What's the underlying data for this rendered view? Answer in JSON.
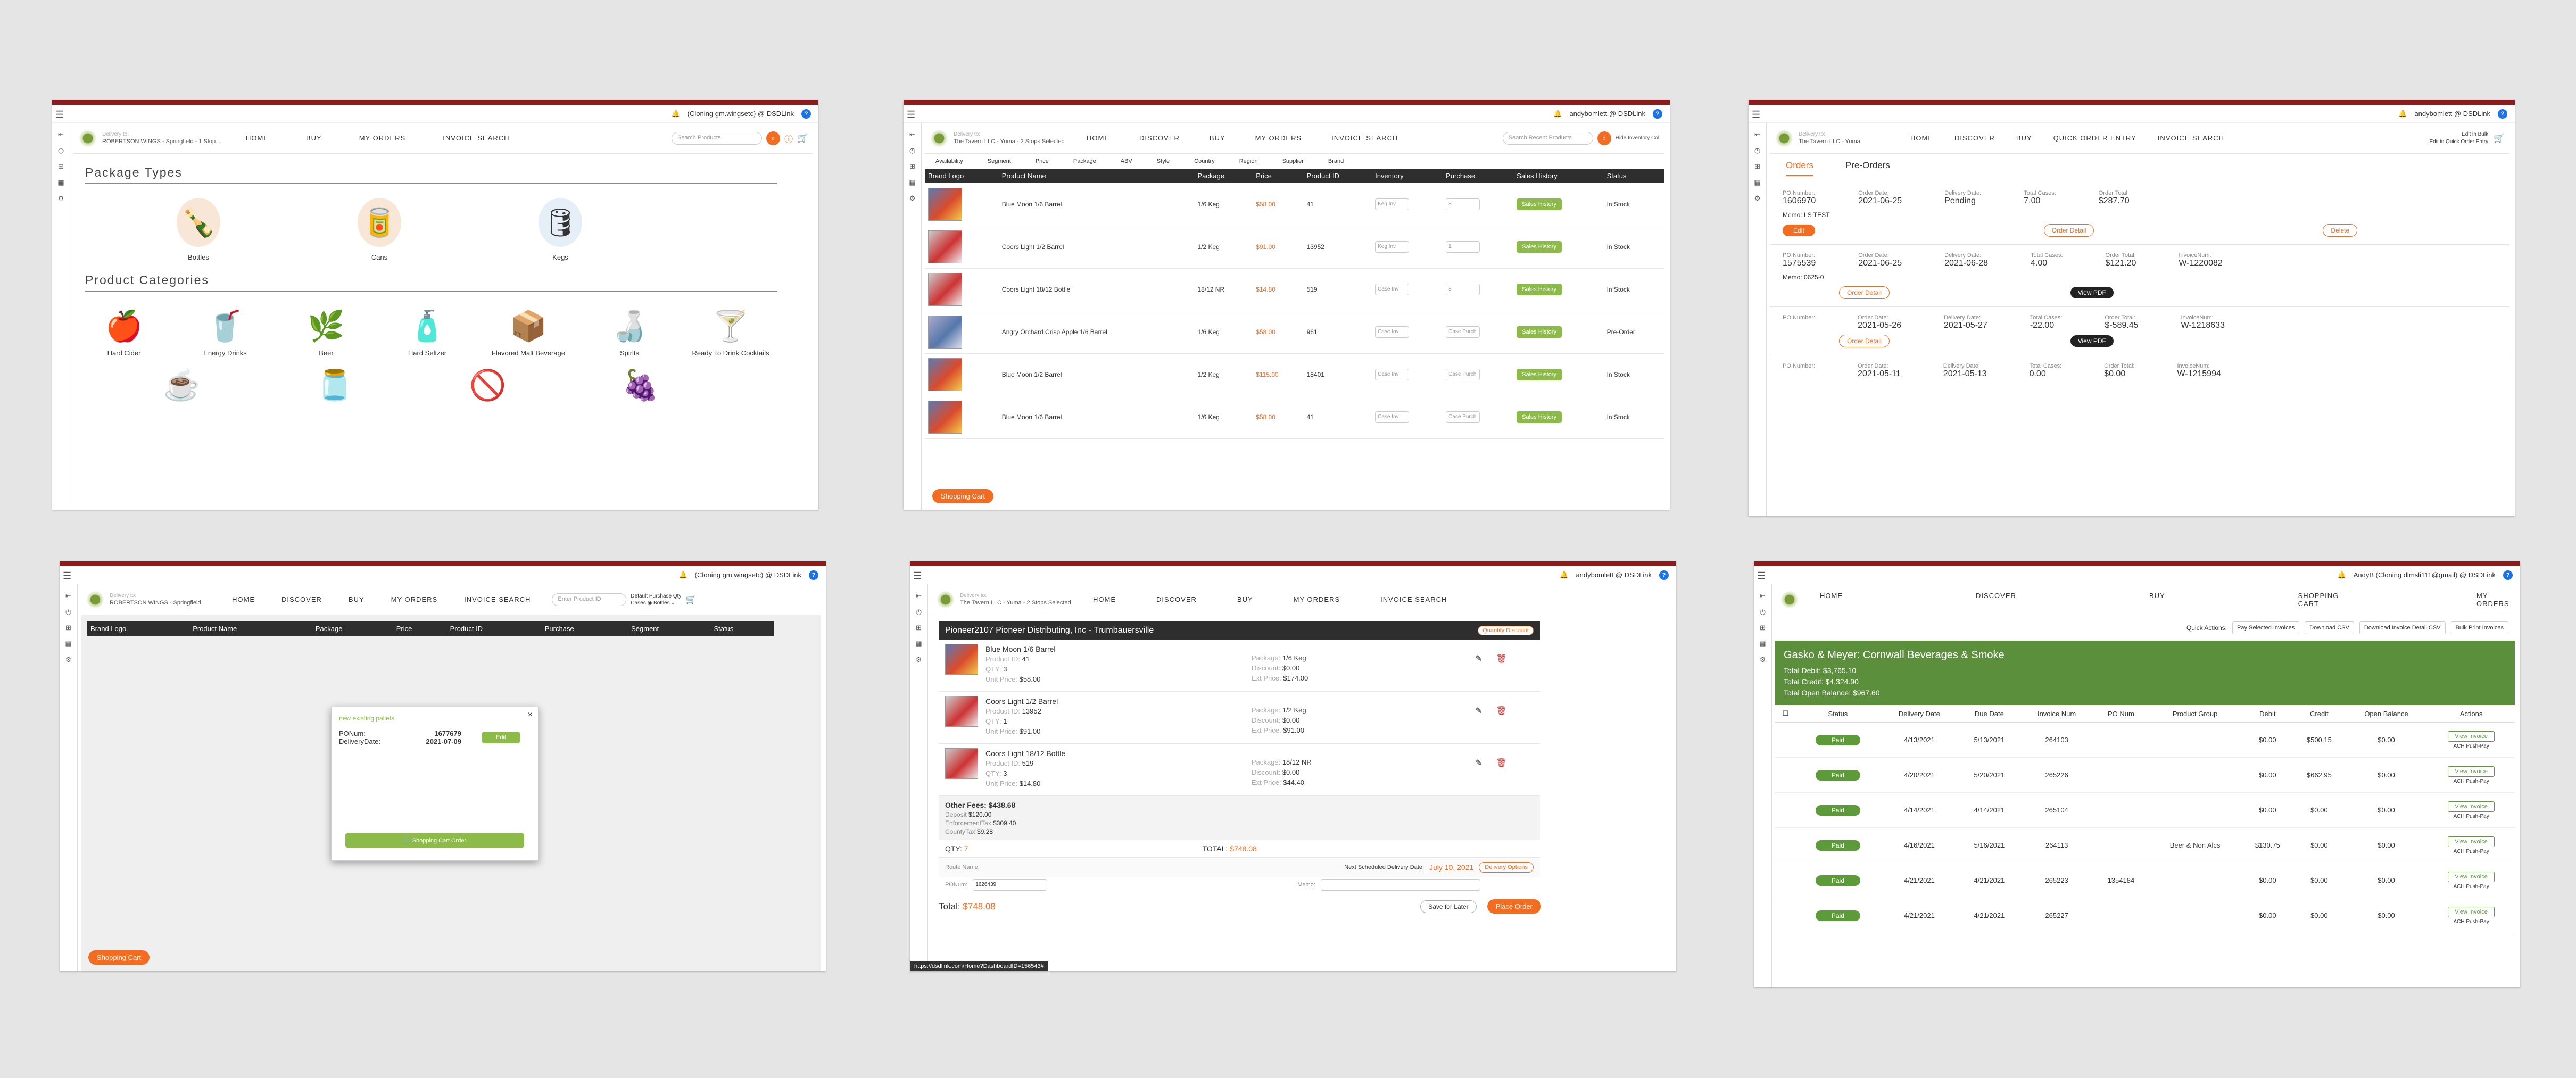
{
  "nav": {
    "home": "HOME",
    "discover": "DISCOVER",
    "buy": "BUY",
    "my_orders": "MY ORDERS",
    "invoice_search": "INVOICE SEARCH",
    "quick_order": "QUICK ORDER ENTRY",
    "shopping_cart": "SHOPPING CART"
  },
  "s1": {
    "user": "(Cloning gm.wingsetc) @ DSDLink",
    "account_label": "Delivery to:",
    "account": "ROBERTSON WINGS - Springfield - 1 Stop...",
    "search_placeholder": "Search Products",
    "package_title": "Package Types",
    "packages": [
      "Bottles",
      "Cans",
      "Kegs"
    ],
    "category_title": "Product Categories",
    "categories": [
      "Hard Cider",
      "Energy Drinks",
      "Beer",
      "Hard Seltzer",
      "Flavored Malt Beverage",
      "Spirits",
      "Ready To Drink Cocktails"
    ]
  },
  "s2": {
    "user": "andybomlett @ DSDLink",
    "account_label": "Delivery to:",
    "account": "The Tavern LLC - Yuma - 2 Stops Selected",
    "search_placeholder": "Search Recent Products",
    "hide_inventory": "Hide Inventory Col",
    "filters": [
      "Availability",
      "Segment",
      "Price",
      "Package",
      "ABV",
      "Style",
      "Country",
      "Region",
      "Supplier",
      "Brand"
    ],
    "headers": [
      "Brand Logo",
      "Product Name",
      "Package",
      "Price",
      "Product ID",
      "Inventory",
      "Purchase",
      "Sales History",
      "Status"
    ],
    "rows": [
      {
        "name": "Blue Moon 1/6 Barrel",
        "pkg": "1/6 Keg",
        "price": "$58.00",
        "id": "41",
        "inv": "Keg Inv",
        "qty": "3",
        "hist": "Sales History",
        "status": "In Stock"
      },
      {
        "name": "Coors Light 1/2 Barrel",
        "pkg": "1/2 Keg",
        "price": "$91.00",
        "id": "13952",
        "inv": "Keg Inv",
        "qty": "1",
        "hist": "Sales History",
        "status": "In Stock"
      },
      {
        "name": "Coors Light 18/12 Bottle",
        "pkg": "18/12 NR",
        "price": "$14.80",
        "id": "519",
        "inv": "Case Inv",
        "qty": "3",
        "hist": "Sales History",
        "status": "In Stock"
      },
      {
        "name": "Angry Orchard Crisp Apple 1/6 Barrel",
        "pkg": "1/6 Keg",
        "price": "$58.00",
        "id": "961",
        "inv": "Case Inv",
        "qty": "Case Purch",
        "hist": "Sales History",
        "status": "Pre-Order"
      },
      {
        "name": "Blue Moon 1/2 Barrel",
        "pkg": "1/2 Keg",
        "price": "$115.00",
        "id": "18401",
        "inv": "Case Inv",
        "qty": "Case Purch",
        "hist": "Sales History",
        "status": "In Stock"
      },
      {
        "name": "Blue Moon 1/6 Barrel",
        "pkg": "1/6 Keg",
        "price": "$58.00",
        "id": "41",
        "inv": "Case Inv",
        "qty": "Case Purch",
        "hist": "Sales History",
        "status": "In Stock"
      }
    ],
    "cart": "Shopping Cart"
  },
  "s3": {
    "user": "andybomlett @ DSDLink",
    "account_label": "Delivery to:",
    "account": "The Tavern LLC - Yuma",
    "edit_bulk": "Edit in Bulk",
    "edit_quick": "Edit in Quick Order Entry",
    "tab_orders": "Orders",
    "tab_preorders": "Pre-Orders",
    "orders": [
      {
        "po_label": "PO Number:",
        "po": "1606970",
        "od_label": "Order Date:",
        "od": "2021-06-25",
        "dd_label": "Delivery Date:",
        "dd": "Pending",
        "tc_label": "Total Cases:",
        "tc": "7.00",
        "ot_label": "Order Total:",
        "ot": "$287.70",
        "inv_label": "",
        "inv": "",
        "memo": "Memo: LS TEST",
        "edit": "Edit",
        "detail": "Order Detail",
        "extra": "Delete"
      },
      {
        "po_label": "PO Number:",
        "po": "1575539",
        "od_label": "Order Date:",
        "od": "2021-06-25",
        "dd_label": "Delivery Date:",
        "dd": "2021-06-28",
        "tc_label": "Total Cases:",
        "tc": "4.00",
        "ot_label": "Order Total:",
        "ot": "$121.20",
        "inv_label": "InvoiceNum:",
        "inv": "W-1220082",
        "memo": "Memo: 0625-0",
        "edit": "",
        "detail": "Order Detail",
        "extra": "View PDF"
      },
      {
        "po_label": "PO Number:",
        "po": "",
        "od_label": "Order Date:",
        "od": "2021-05-26",
        "dd_label": "Delivery Date:",
        "dd": "2021-05-27",
        "tc_label": "Total Cases:",
        "tc": "-22.00",
        "ot_label": "Order Total:",
        "ot": "$-589.45",
        "inv_label": "InvoiceNum:",
        "inv": "W-1218633",
        "memo": "",
        "edit": "",
        "detail": "Order Detail",
        "extra": "View PDF"
      },
      {
        "po_label": "PO Number:",
        "po": "",
        "od_label": "Order Date:",
        "od": "2021-05-11",
        "dd_label": "Delivery Date:",
        "dd": "2021-05-13",
        "tc_label": "Total Cases:",
        "tc": "0.00",
        "ot_label": "Order Total:",
        "ot": "$0.00",
        "inv_label": "InvoiceNum:",
        "inv": "W-1215994",
        "memo": "",
        "edit": "",
        "detail": "",
        "extra": ""
      }
    ]
  },
  "s4": {
    "user": "(Cloning gm.wingsetc) @ DSDLink",
    "account_label": "Delivery to:",
    "account": "ROBERTSON WINGS - Springfield",
    "search_placeholder": "Enter Product ID",
    "default_qty": "Default Purchase Qty",
    "cases": "Cases",
    "bottles": "Bottles",
    "headers": [
      "Brand Logo",
      "Product Name",
      "Package",
      "Price",
      "Product ID",
      "Purchase",
      "Segment",
      "Status"
    ],
    "modal_tabs": "new  existing  pallets",
    "po_label": "PONum:",
    "po": "1677679",
    "dd_label": "DeliveryDate:",
    "dd": "2021-07-09",
    "edit": "Edit",
    "modal_btn": "Shopping Cart Order",
    "cart": "Shopping Cart"
  },
  "s5": {
    "user": "andybomlett @ DSDLink",
    "account_label": "Delivery to:",
    "account": "The Tavern LLC - Yuma - 2 Stops Selected",
    "distributor": "Pioneer2107 Pioneer Distributing, Inc - Trumbauersville",
    "quick_discount": "Quantity Discount",
    "items": [
      {
        "name": "Blue Moon 1/6 Barrel",
        "pid_label": "Product ID:",
        "pid": "41",
        "qty_label": "QTY:",
        "qty": "3",
        "up_label": "Unit Price:",
        "up": "$58.00",
        "pkg_label": "Package:",
        "pkg": "1/6 Keg",
        "disc_label": "Discount:",
        "disc": "$0.00",
        "ext_label": "Ext Price:",
        "ext": "$174.00"
      },
      {
        "name": "Coors Light 1/2 Barrel",
        "pid_label": "Product ID:",
        "pid": "13952",
        "qty_label": "QTY:",
        "qty": "1",
        "up_label": "Unit Price:",
        "up": "$91.00",
        "pkg_label": "Package:",
        "pkg": "1/2 Keg",
        "disc_label": "Discount:",
        "disc": "$0.00",
        "ext_label": "Ext Price:",
        "ext": "$91.00"
      },
      {
        "name": "Coors Light 18/12 Bottle",
        "pid_label": "Product ID:",
        "pid": "519",
        "qty_label": "QTY:",
        "qty": "3",
        "up_label": "Unit Price:",
        "up": "$14.80",
        "pkg_label": "Package:",
        "pkg": "18/12 NR",
        "disc_label": "Discount:",
        "disc": "$0.00",
        "ext_label": "Ext Price:",
        "ext": "$44.40"
      }
    ],
    "other_fees_label": "Other Fees:",
    "other_fees": "$438.68",
    "fees": [
      {
        "k": "Deposit",
        "v": "$120.00"
      },
      {
        "k": "EnforcementTax",
        "v": "$309.40"
      },
      {
        "k": "CountyTax",
        "v": "$9.28"
      }
    ],
    "qty_label": "QTY:",
    "qty": "7",
    "total_label": "TOTAL:",
    "total": "$748.08",
    "next_delivery_label": "Next Scheduled Delivery Date:",
    "next_delivery": "July 10, 2021",
    "delivery_options": "Delivery Options",
    "route_label": "Route Name:",
    "ponum_label": "PONum:",
    "ponum": "1626439",
    "memo_label": "Memo:",
    "grand_label": "Total:",
    "grand": "$748.08",
    "save_later": "Save for Later",
    "place_order": "Place Order",
    "url": "https://dsdlink.com/Home?DashboardID=156543#"
  },
  "s6": {
    "user": "AndyB (Cloning dlmsli111@gmail) @ DSDLink",
    "quick_actions": "Quick Actions:",
    "actions": [
      "Pay Selected Invoices",
      "Download CSV",
      "Download Invoice Detail CSV",
      "Bulk Print Invoices"
    ],
    "company": "Gasko & Meyer: Cornwall Beverages & Smoke",
    "total_debit": "Total Debit: $3,765.10",
    "total_credit": "Total Credit: $4,324.90",
    "total_open": "Total Open Balance: $967.60",
    "headers": [
      "",
      "Status",
      "Delivery Date",
      "Due Date",
      "Invoice Num",
      "PO Num",
      "Product Group",
      "Debit",
      "Credit",
      "Open Balance",
      "Actions"
    ],
    "rows": [
      {
        "status": "Paid",
        "dd": "4/13/2021",
        "due": "5/13/2021",
        "inv": "264103",
        "po": "",
        "grp": "",
        "debit": "$0.00",
        "credit": "$500.15",
        "open": "$0.00"
      },
      {
        "status": "Paid",
        "dd": "4/20/2021",
        "due": "5/20/2021",
        "inv": "265226",
        "po": "",
        "grp": "",
        "debit": "$0.00",
        "credit": "$662.95",
        "open": "$0.00"
      },
      {
        "status": "Paid",
        "dd": "4/14/2021",
        "due": "4/14/2021",
        "inv": "265104",
        "po": "",
        "grp": "",
        "debit": "$0.00",
        "credit": "$0.00",
        "open": "$0.00"
      },
      {
        "status": "Paid",
        "dd": "4/16/2021",
        "due": "5/16/2021",
        "inv": "264113",
        "po": "",
        "grp": "Beer & Non Alcs",
        "debit": "$130.75",
        "credit": "$0.00",
        "open": "$0.00"
      },
      {
        "status": "Paid",
        "dd": "4/21/2021",
        "due": "4/21/2021",
        "inv": "265223",
        "po": "1354184",
        "grp": "",
        "debit": "$0.00",
        "credit": "$0.00",
        "open": "$0.00"
      },
      {
        "status": "Paid",
        "dd": "4/21/2021",
        "due": "4/21/2021",
        "inv": "265227",
        "po": "",
        "grp": "",
        "debit": "$0.00",
        "credit": "$0.00",
        "open": "$0.00"
      }
    ],
    "view_invoice": "View Invoice",
    "ach": "ACH Push-Pay"
  }
}
